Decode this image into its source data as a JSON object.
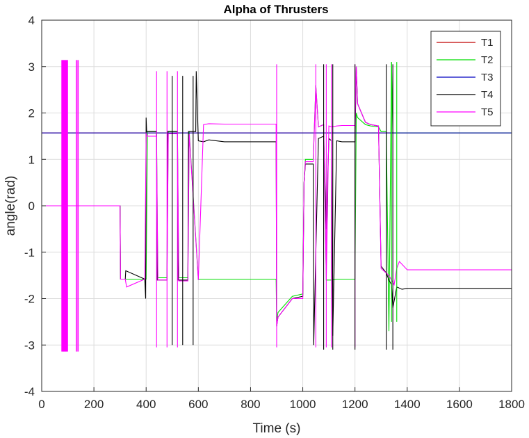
{
  "chart_data": {
    "type": "line",
    "title": "Alpha of Thrusters",
    "xlabel": "Time (s)",
    "ylabel": "angle(rad)",
    "xlim": [
      0,
      1800
    ],
    "ylim": [
      -4,
      4
    ],
    "xticks": [
      0,
      200,
      400,
      600,
      800,
      1000,
      1200,
      1400,
      1600,
      1800
    ],
    "yticks": [
      -4,
      -3,
      -2,
      -1,
      0,
      1,
      2,
      3,
      4
    ],
    "grid": true,
    "legend_position": "top-right",
    "series": [
      {
        "name": "T1",
        "color": "#c00000",
        "x": [
          0,
          300,
          300,
          395,
          395,
          900,
          1800
        ],
        "y": [
          1.57,
          1.57,
          1.57,
          1.57,
          1.57,
          1.57,
          1.57
        ]
      },
      {
        "name": "T2",
        "color": "#00dd00",
        "x": [
          0,
          300,
          302,
          400,
          405,
          440,
          445,
          480,
          485,
          520,
          525,
          560,
          565,
          600,
          700,
          800,
          898,
          900,
          905,
          960,
          1000,
          1005,
          1010,
          1040,
          1050,
          1060,
          1080,
          1090,
          1110,
          1130,
          1150,
          1200,
          1205,
          1210,
          1240,
          1260,
          1290,
          1300,
          1320,
          1330,
          1340,
          1345,
          1350,
          1800
        ],
        "y": [
          0,
          0,
          -1.58,
          -1.58,
          1.6,
          1.6,
          -1.55,
          -1.55,
          1.6,
          1.6,
          -1.55,
          -1.55,
          1.6,
          -1.58,
          -1.58,
          -1.58,
          -1.58,
          -2.5,
          -2.3,
          -1.95,
          -1.9,
          0.5,
          1.0,
          1.0,
          2.6,
          1.7,
          1.75,
          -1.6,
          -1.6,
          -1.58,
          -1.58,
          -1.58,
          2.0,
          1.9,
          1.75,
          1.72,
          1.7,
          1.6,
          1.6,
          -2.7,
          3.1,
          1.57,
          1.57,
          1.57
        ]
      },
      {
        "name": "T3",
        "color": "#0000c0",
        "x": [
          0,
          300,
          600,
          900,
          1200,
          1500,
          1800
        ],
        "y": [
          1.57,
          1.57,
          1.57,
          1.57,
          1.57,
          1.57,
          1.57
        ]
      },
      {
        "name": "T4",
        "color": "#000000",
        "x": [
          0,
          300,
          302,
          320,
          322,
          395,
          398,
          400,
          402,
          440,
          442,
          480,
          482,
          520,
          522,
          560,
          562,
          590,
          592,
          600,
          620,
          640,
          700,
          800,
          898,
          900,
          905,
          960,
          1000,
          1005,
          1010,
          1040,
          1042,
          1060,
          1080,
          1090,
          1100,
          1110,
          1115,
          1130,
          1150,
          1200,
          1205,
          1210,
          1240,
          1260,
          1290,
          1300,
          1320,
          1330,
          1340,
          1345,
          1360,
          1380,
          1400,
          1500,
          1800
        ],
        "y": [
          0,
          0,
          -1.58,
          -1.58,
          -1.4,
          -1.58,
          -2.0,
          1.9,
          1.6,
          1.6,
          -1.6,
          -1.6,
          1.6,
          1.6,
          -1.6,
          -1.6,
          1.6,
          1.6,
          2.9,
          1.4,
          1.38,
          1.42,
          1.38,
          1.38,
          1.38,
          -2.6,
          -2.4,
          -2.0,
          -1.95,
          0.5,
          0.9,
          0.9,
          -3.0,
          1.45,
          1.5,
          -0.5,
          1.45,
          1.4,
          -2.8,
          1.4,
          1.38,
          1.38,
          3.0,
          2.2,
          1.8,
          1.75,
          1.72,
          -1.3,
          -1.45,
          -1.6,
          -1.7,
          -2.2,
          -1.75,
          -1.8,
          -1.78,
          -1.78,
          -1.78
        ]
      },
      {
        "name": "T5",
        "color": "#ff00ff",
        "x": [
          0,
          300,
          302,
          320,
          325,
          395,
          400,
          405,
          440,
          445,
          480,
          485,
          520,
          525,
          560,
          565,
          600,
          620,
          640,
          700,
          800,
          898,
          900,
          905,
          960,
          1000,
          1005,
          1010,
          1040,
          1050,
          1060,
          1080,
          1090,
          1100,
          1110,
          1130,
          1150,
          1200,
          1205,
          1210,
          1240,
          1260,
          1290,
          1300,
          1320,
          1330,
          1340,
          1350,
          1360,
          1370,
          1400,
          1500,
          1800
        ],
        "y": [
          0,
          0,
          -1.58,
          -1.58,
          -1.75,
          -1.58,
          1.55,
          1.5,
          1.5,
          -1.6,
          -1.6,
          1.55,
          1.55,
          -1.62,
          -1.62,
          1.55,
          -1.6,
          1.75,
          1.77,
          1.76,
          1.76,
          1.76,
          -2.6,
          -2.4,
          -2.0,
          -2.0,
          0.5,
          0.95,
          0.95,
          2.6,
          1.7,
          1.75,
          -1.6,
          1.72,
          1.7,
          1.72,
          1.73,
          1.73,
          3.0,
          2.2,
          1.8,
          1.75,
          1.72,
          -1.35,
          -1.45,
          -1.5,
          -1.6,
          -1.7,
          -1.35,
          -1.2,
          -1.38,
          -1.38,
          -1.38
        ]
      }
    ],
    "spikes": [
      {
        "series": "T5",
        "x": [
          78,
          82,
          86,
          90,
          94,
          98
        ],
        "y_from": 3.14,
        "y_to": -3.14
      },
      {
        "series": "T5",
        "x": [
          132,
          136,
          140
        ],
        "y_from": 3.14,
        "y_to": -3.14
      },
      {
        "series": "T5",
        "x": [
          440,
          480,
          520
        ],
        "y_from": 2.9,
        "y_to": -3.05
      },
      {
        "series": "T4",
        "x": [
          500,
          540,
          580
        ],
        "y_from": 2.8,
        "y_to": -3.0
      },
      {
        "series": "T5",
        "x": [
          900,
          1050,
          1090,
          1110,
          1200
        ],
        "y_from": 3.05,
        "y_to": -3.05
      },
      {
        "series": "T4",
        "x": [
          1080,
          1115,
          1200,
          1320,
          1345
        ],
        "y_from": 3.05,
        "y_to": -3.1
      },
      {
        "series": "T2",
        "x": [
          1340,
          1360
        ],
        "y_from": 3.1,
        "y_to": -2.5
      }
    ]
  }
}
